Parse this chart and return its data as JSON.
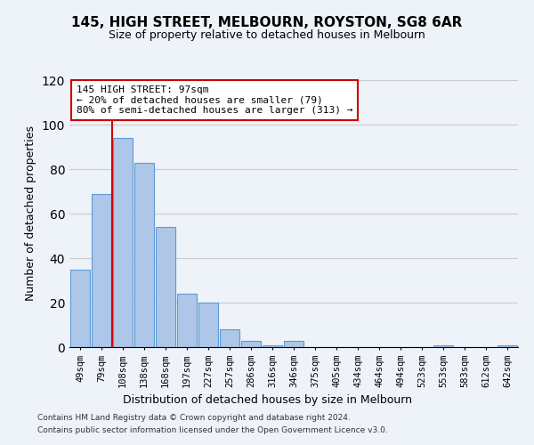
{
  "title": "145, HIGH STREET, MELBOURN, ROYSTON, SG8 6AR",
  "subtitle": "Size of property relative to detached houses in Melbourn",
  "xlabel": "Distribution of detached houses by size in Melbourn",
  "ylabel": "Number of detached properties",
  "categories": [
    "49sqm",
    "79sqm",
    "108sqm",
    "138sqm",
    "168sqm",
    "197sqm",
    "227sqm",
    "257sqm",
    "286sqm",
    "316sqm",
    "346sqm",
    "375sqm",
    "405sqm",
    "434sqm",
    "464sqm",
    "494sqm",
    "523sqm",
    "553sqm",
    "583sqm",
    "612sqm",
    "642sqm"
  ],
  "bar_values_full": [
    35,
    69,
    94,
    83,
    54,
    24,
    20,
    8,
    3,
    1,
    3,
    0,
    0,
    0,
    0,
    0,
    0,
    1,
    0,
    0,
    1
  ],
  "ylim": [
    0,
    120
  ],
  "yticks": [
    0,
    20,
    40,
    60,
    80,
    100,
    120
  ],
  "bar_color": "#aec6e8",
  "bar_edge_color": "#5b9bd5",
  "red_line_x": 1.5,
  "annotation_line1": "145 HIGH STREET: 97sqm",
  "annotation_line2": "← 20% of detached houses are smaller (79)",
  "annotation_line3": "80% of semi-detached houses are larger (313) →",
  "red_line_color": "#cc0000",
  "annotation_box_color": "#ffffff",
  "annotation_box_edge": "#cc0000",
  "footer1": "Contains HM Land Registry data © Crown copyright and database right 2024.",
  "footer2": "Contains public sector information licensed under the Open Government Licence v3.0.",
  "grid_color": "#cccccc",
  "background_color": "#eef2f9"
}
